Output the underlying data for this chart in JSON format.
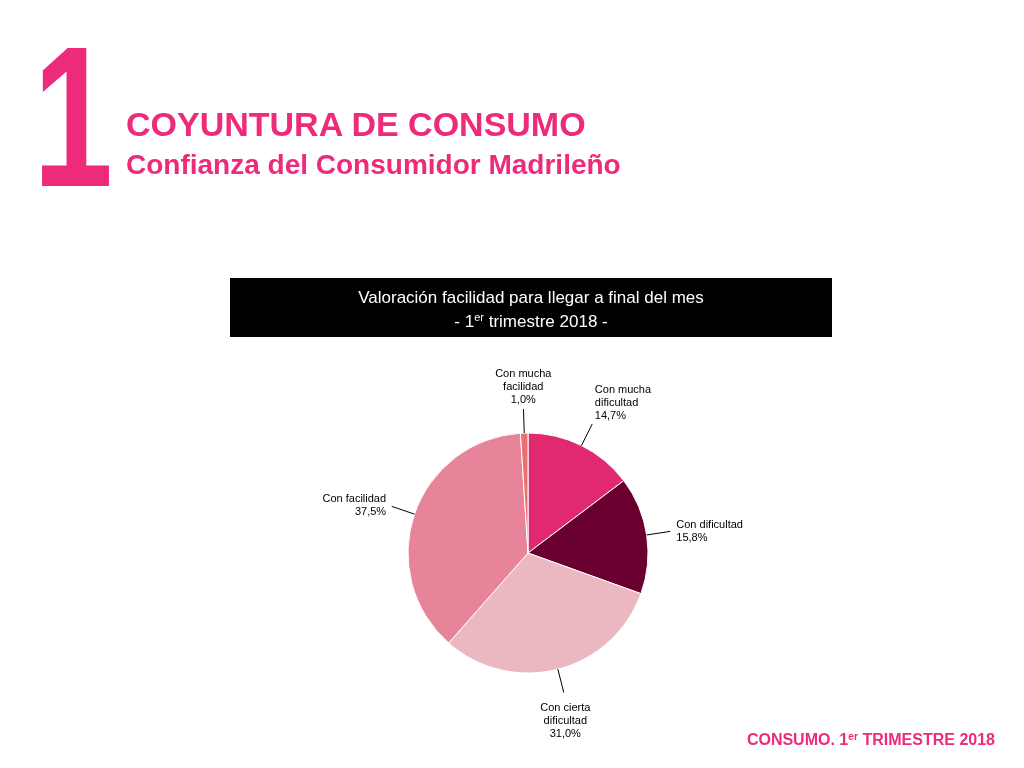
{
  "chart_data": {
    "type": "pie",
    "title": "COYUNTURA DE CONSUMO",
    "subtitle": "Confianza del Consumidor Madrileño",
    "annotations": [
      "1",
      "Valoración facilidad para llegar a final del mes - 1$^{er}$ trimestre 2018 -",
      "CONSUMO. 1$^{er}$ TRIMESTRE 2018"
    ],
    "categories": [
      "Con mucha dificultad",
      "Con dificultad",
      "Con cierta dificultad",
      "Con facilidad",
      "Con mucha facilidad"
    ],
    "values": [
      14.7,
      15.8,
      31.0,
      37.5,
      1.0
    ],
    "value_labels": [
      "14,7%",
      "15,8%",
      "31,0%",
      "37,5%",
      "1,0%"
    ],
    "colors": [
      "#e0296e",
      "#6a0030",
      "#ebb7c0",
      "#e8849a",
      "#e8706e"
    ],
    "legend": false
  }
}
